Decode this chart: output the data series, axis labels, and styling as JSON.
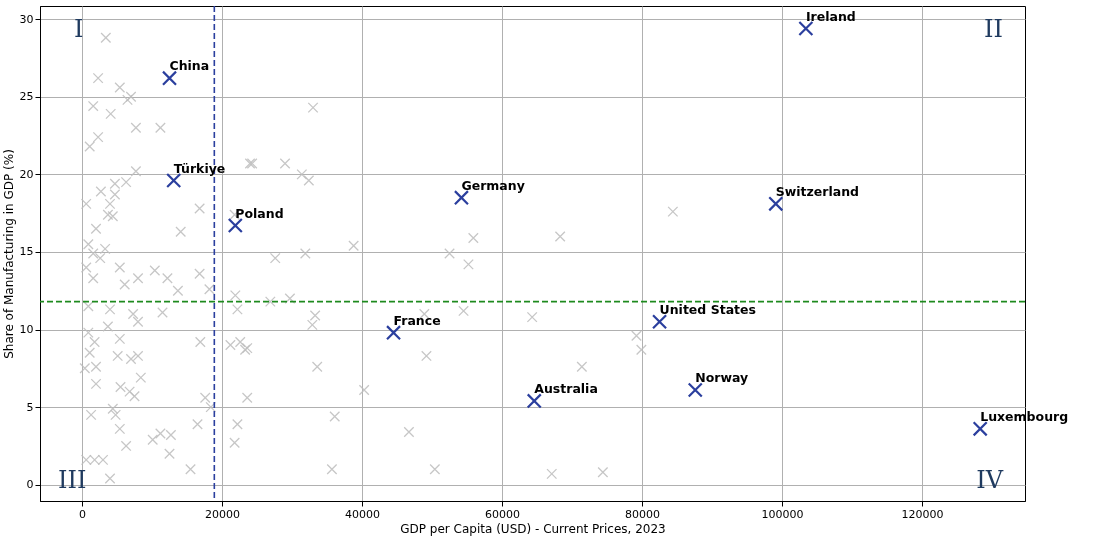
{
  "chart_data": {
    "type": "scatter",
    "xlabel": "GDP per Capita (USD) - Current Prices, 2023",
    "ylabel": "Share of Manufacturing in GDP (%)",
    "xlim": [
      -6000,
      134700
    ],
    "ylim": [
      -1.05,
      30.85
    ],
    "xticks": [
      0,
      20000,
      40000,
      60000,
      80000,
      100000,
      120000
    ],
    "yticks": [
      0,
      5,
      10,
      15,
      20,
      25,
      30
    ],
    "grid": true,
    "marker": "cross",
    "series": [
      {
        "color": "#bdbdbd",
        "x": [
          3400,
          2300,
          5400,
          6500,
          7000,
          1600,
          4100,
          7700,
          11200,
          1100,
          2300,
          24000,
          7700,
          6300,
          4700,
          2700,
          4000,
          4700,
          600,
          16800,
          3700,
          4400,
          2000,
          14100,
          900,
          3300,
          1600,
          21800,
          600,
          1600,
          2600,
          5400,
          6100,
          8000,
          10400,
          12200,
          13700,
          16800,
          18200,
          21900,
          22200,
          11500,
          7300,
          4000,
          900,
          8000,
          3700,
          900,
          1800,
          5400,
          16900,
          21200,
          22600,
          23300,
          1100,
          5100,
          7000,
          8000,
          400,
          2000,
          8400,
          2000,
          5500,
          6800,
          7500,
          17600,
          23600,
          1300,
          4400,
          4800,
          16500,
          18400,
          5400,
          22200,
          21800,
          10100,
          11200,
          12700,
          6300,
          12500,
          600,
          1800,
          3000,
          15500,
          4000,
          33000,
          24300,
          29000,
          31400,
          32400,
          38800,
          27600,
          31900,
          26900,
          29700,
          33300,
          32900,
          23600,
          33600,
          40300,
          36100,
          46700,
          35700,
          50400,
          49200,
          48900,
          55900,
          52500,
          55200,
          54500,
          68300,
          84400,
          64300,
          71400,
          79200,
          79900,
          67100,
          74400
        ],
        "values": [
          28.8,
          26.2,
          25.6,
          24.8,
          25.0,
          24.4,
          23.9,
          23.0,
          23.0,
          21.8,
          22.4,
          20.7,
          20.2,
          19.5,
          19.4,
          18.9,
          18.1,
          18.7,
          18.1,
          17.8,
          17.4,
          17.3,
          16.5,
          16.3,
          15.5,
          15.2,
          14.9,
          17.4,
          14.0,
          13.3,
          14.6,
          14.0,
          12.9,
          13.3,
          13.8,
          13.3,
          12.5,
          13.6,
          12.6,
          12.2,
          11.3,
          11.1,
          11.0,
          11.3,
          11.5,
          10.5,
          10.2,
          9.8,
          9.2,
          9.4,
          9.2,
          9.0,
          9.2,
          8.7,
          8.5,
          8.3,
          8.1,
          8.3,
          7.5,
          7.6,
          6.9,
          6.5,
          6.3,
          6.0,
          5.7,
          5.6,
          5.6,
          4.5,
          4.9,
          4.5,
          3.9,
          5.0,
          3.6,
          3.9,
          2.7,
          2.9,
          3.3,
          3.2,
          2.5,
          2.0,
          1.6,
          1.6,
          1.6,
          1.0,
          0.4,
          24.3,
          20.7,
          20.7,
          20.0,
          19.6,
          15.4,
          14.6,
          14.9,
          11.8,
          12.0,
          10.9,
          10.3,
          8.8,
          7.6,
          6.1,
          4.4,
          3.4,
          1.0,
          1.0,
          8.3,
          11.0,
          15.9,
          14.9,
          14.2,
          11.2,
          16.0,
          17.6,
          10.8,
          7.6,
          9.6,
          8.7,
          0.7,
          0.8
        ]
      },
      {
        "color": "#2b3f9e",
        "x": [
          12500,
          13100,
          21900,
          54200,
          44500,
          64600,
          82500,
          87600,
          99100,
          103400,
          128300
        ],
        "values": [
          26.2,
          19.6,
          16.7,
          18.5,
          9.8,
          5.4,
          10.5,
          6.1,
          18.1,
          29.4,
          3.6
        ]
      }
    ],
    "ref_lines": [
      {
        "axis": "x",
        "value": 18900,
        "color": "#2b3f9e",
        "line_style": "dashed"
      },
      {
        "axis": "y",
        "value": 11.8,
        "color": "#1e8a1e",
        "line_style": "dashed"
      }
    ],
    "annotations": [
      {
        "text": "China",
        "x": 12500,
        "y": 26.2
      },
      {
        "text": "Türkiye",
        "x": 13100,
        "y": 19.6
      },
      {
        "text": "Poland",
        "x": 21900,
        "y": 16.7
      },
      {
        "text": "Germany",
        "x": 54200,
        "y": 18.5
      },
      {
        "text": "France",
        "x": 44500,
        "y": 9.8
      },
      {
        "text": "Australia",
        "x": 64600,
        "y": 5.4
      },
      {
        "text": "United States",
        "x": 82500,
        "y": 10.5
      },
      {
        "text": "Norway",
        "x": 87600,
        "y": 6.1
      },
      {
        "text": "Switzerland",
        "x": 99100,
        "y": 18.1
      },
      {
        "text": "Ireland",
        "x": 103400,
        "y": 29.4
      },
      {
        "text": "Luxembourg",
        "x": 128300,
        "y": 3.6
      },
      "I",
      "II",
      "III",
      "IV"
    ]
  }
}
